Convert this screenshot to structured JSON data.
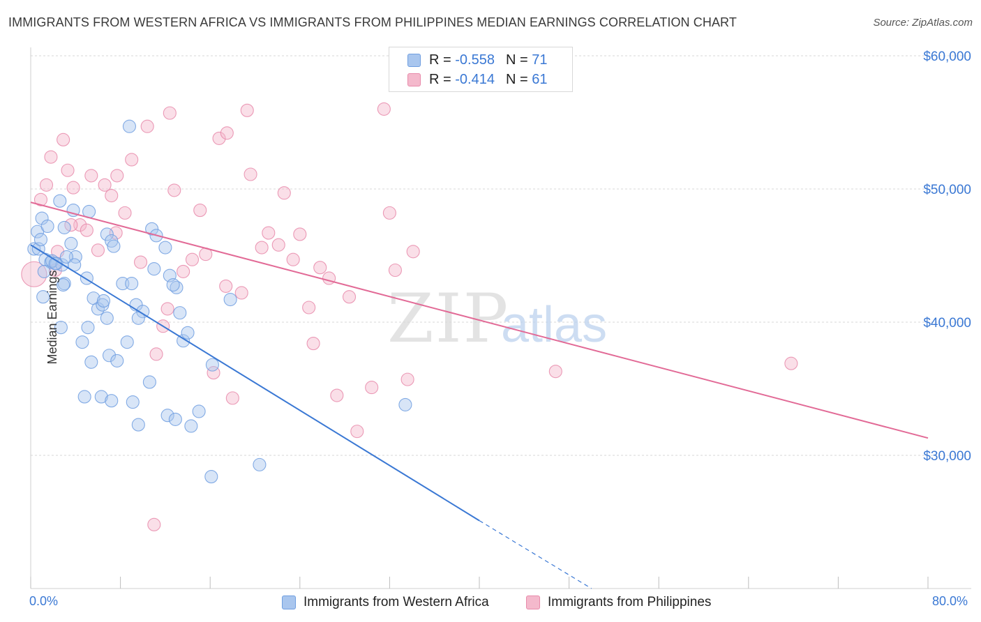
{
  "title": "IMMIGRANTS FROM WESTERN AFRICA VS IMMIGRANTS FROM PHILIPPINES MEDIAN EARNINGS CORRELATION CHART",
  "source": "Source: ZipAtlas.com",
  "watermark": {
    "zip": "ZIP",
    "atlas": "atlas"
  },
  "colors": {
    "blue": "#3a78d4",
    "blue_fill": "#a9c6ee",
    "pink": "#e26a96",
    "pink_fill": "#f4b9cc",
    "grid": "#d7d7d7"
  },
  "legend": {
    "rows": [
      {
        "r_label": "R =",
        "r_value": "-0.558",
        "n_label": "N =",
        "n_value": "71"
      },
      {
        "r_label": "R =",
        "r_value": "-0.414",
        "n_label": "N =",
        "n_value": "61"
      }
    ]
  },
  "bottom_legend": {
    "series_a": "Immigrants from Western Africa",
    "series_b": "Immigrants from Philippines"
  },
  "x_axis": {
    "min_label": "0.0%",
    "max_label": "80.0%"
  },
  "chart_data": {
    "type": "scatter",
    "title": "IMMIGRANTS FROM WESTERN AFRICA VS IMMIGRANTS FROM PHILIPPINES MEDIAN EARNINGS CORRELATION CHART",
    "xlabel": "",
    "ylabel": "Median Earnings",
    "xlim": [
      0,
      80
    ],
    "ylim": [
      20000,
      62000
    ],
    "y_ticks": [
      30000,
      40000,
      50000,
      60000
    ],
    "y_tick_labels": [
      "$30,000",
      "$40,000",
      "$50,000",
      "$60,000"
    ],
    "series": [
      {
        "name": "Immigrants from Western Africa",
        "color": "#3a78d4",
        "trend": {
          "x0": 0,
          "y0": 45800,
          "x1": 40,
          "y1": 25100,
          "dash_to_x": 50,
          "dash_to_y": 20000
        },
        "points": [
          [
            0.3,
            45500
          ],
          [
            0.6,
            46800
          ],
          [
            1.0,
            47800
          ],
          [
            0.7,
            45500
          ],
          [
            1.3,
            44700
          ],
          [
            1.8,
            44500
          ],
          [
            2.3,
            44400
          ],
          [
            2.6,
            49100
          ],
          [
            1.2,
            43800
          ],
          [
            1.9,
            44600
          ],
          [
            2.8,
            44300
          ],
          [
            1.1,
            41900
          ],
          [
            3.0,
            42900
          ],
          [
            3.6,
            45900
          ],
          [
            3.8,
            48400
          ],
          [
            4.0,
            44900
          ],
          [
            2.9,
            42800
          ],
          [
            2.7,
            39600
          ],
          [
            3.0,
            47100
          ],
          [
            3.2,
            44900
          ],
          [
            1.5,
            47200
          ],
          [
            5.0,
            43300
          ],
          [
            5.2,
            48300
          ],
          [
            5.6,
            41800
          ],
          [
            6.0,
            41000
          ],
          [
            6.4,
            41300
          ],
          [
            6.8,
            46600
          ],
          [
            7.2,
            46100
          ],
          [
            7.4,
            45700
          ],
          [
            8.2,
            42900
          ],
          [
            9.0,
            42900
          ],
          [
            9.4,
            41300
          ],
          [
            10.0,
            40800
          ],
          [
            10.8,
            47000
          ],
          [
            11.2,
            46500
          ],
          [
            12.0,
            45600
          ],
          [
            12.4,
            43500
          ],
          [
            13.0,
            42600
          ],
          [
            13.6,
            38600
          ],
          [
            4.6,
            38500
          ],
          [
            5.1,
            39600
          ],
          [
            5.4,
            37000
          ],
          [
            6.5,
            41600
          ],
          [
            7.0,
            37500
          ],
          [
            7.7,
            37100
          ],
          [
            8.6,
            38500
          ],
          [
            9.6,
            40300
          ],
          [
            10.6,
            35500
          ],
          [
            12.2,
            33000
          ],
          [
            12.9,
            32700
          ],
          [
            14.3,
            32200
          ],
          [
            15.0,
            33300
          ],
          [
            16.1,
            28400
          ],
          [
            16.2,
            36800
          ],
          [
            17.8,
            41700
          ],
          [
            20.4,
            29300
          ],
          [
            33.4,
            33800
          ],
          [
            8.8,
            54700
          ],
          [
            3.9,
            44300
          ],
          [
            2.2,
            44400
          ],
          [
            6.3,
            34400
          ],
          [
            7.2,
            34100
          ],
          [
            9.1,
            34000
          ],
          [
            9.6,
            32300
          ],
          [
            12.7,
            42800
          ],
          [
            11.0,
            44000
          ],
          [
            0.9,
            46200
          ],
          [
            4.8,
            34400
          ],
          [
            14.0,
            39200
          ],
          [
            6.8,
            40300
          ],
          [
            13.3,
            40700
          ]
        ]
      },
      {
        "name": "Immigrants from Philippines",
        "color": "#e26a96",
        "trend": {
          "x0": 0,
          "y0": 49000,
          "x1": 80,
          "y1": 31300
        },
        "points": [
          [
            0.3,
            43600
          ],
          [
            0.9,
            49200
          ],
          [
            1.4,
            50300
          ],
          [
            1.8,
            52400
          ],
          [
            2.4,
            45300
          ],
          [
            2.9,
            53700
          ],
          [
            3.3,
            51400
          ],
          [
            3.8,
            50100
          ],
          [
            4.4,
            47300
          ],
          [
            5.0,
            46900
          ],
          [
            5.4,
            51000
          ],
          [
            6.0,
            45400
          ],
          [
            6.6,
            50300
          ],
          [
            7.2,
            49500
          ],
          [
            7.7,
            51000
          ],
          [
            8.4,
            48200
          ],
          [
            9.0,
            52200
          ],
          [
            9.8,
            44500
          ],
          [
            10.4,
            54700
          ],
          [
            11.2,
            37600
          ],
          [
            11.8,
            39700
          ],
          [
            12.2,
            41000
          ],
          [
            12.4,
            55700
          ],
          [
            12.8,
            49900
          ],
          [
            13.6,
            43800
          ],
          [
            14.4,
            44700
          ],
          [
            15.1,
            48400
          ],
          [
            15.6,
            45100
          ],
          [
            16.3,
            36200
          ],
          [
            16.8,
            53800
          ],
          [
            17.4,
            42700
          ],
          [
            18.0,
            34300
          ],
          [
            18.8,
            42200
          ],
          [
            19.3,
            55900
          ],
          [
            19.6,
            51100
          ],
          [
            20.6,
            45600
          ],
          [
            21.2,
            46700
          ],
          [
            22.1,
            45800
          ],
          [
            22.6,
            49700
          ],
          [
            23.4,
            44700
          ],
          [
            24.0,
            46600
          ],
          [
            24.8,
            41100
          ],
          [
            25.2,
            38400
          ],
          [
            25.8,
            44100
          ],
          [
            26.6,
            43300
          ],
          [
            27.3,
            34500
          ],
          [
            28.4,
            41900
          ],
          [
            29.1,
            31800
          ],
          [
            30.4,
            35100
          ],
          [
            31.5,
            56000
          ],
          [
            32.0,
            48200
          ],
          [
            32.5,
            43900
          ],
          [
            33.6,
            35700
          ],
          [
            34.1,
            45300
          ],
          [
            11.0,
            24800
          ],
          [
            46.8,
            36300
          ],
          [
            67.8,
            36900
          ],
          [
            17.5,
            54200
          ],
          [
            7.6,
            46700
          ],
          [
            3.6,
            47300
          ],
          [
            2.2,
            43900
          ]
        ]
      }
    ]
  }
}
